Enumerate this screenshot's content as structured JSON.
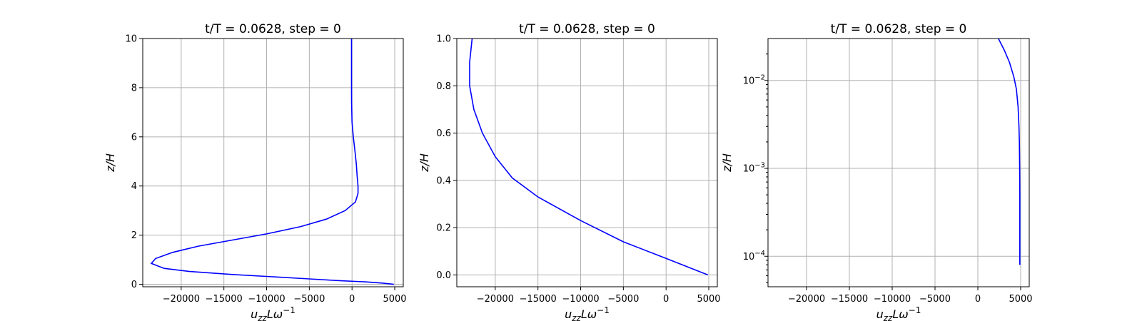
{
  "chart_data": [
    {
      "type": "line",
      "title": "t/T = 0.0628, step = 0",
      "xlabel": "u_zz L ω^-1",
      "ylabel": "z/H",
      "xlim": [
        -24500,
        6000
      ],
      "ylim": [
        -0.1,
        10
      ],
      "xticks": [
        -20000,
        -15000,
        -10000,
        -5000,
        0,
        5000
      ],
      "yticks": [
        0,
        2,
        4,
        6,
        8,
        10
      ],
      "ytick_labels": [
        "0",
        "2",
        "4",
        "6",
        "8",
        "10"
      ],
      "grid": true,
      "yscale": "linear",
      "series": [
        {
          "color": "#0000ff",
          "x": [
            4900,
            3500,
            1500,
            -1500,
            -5000,
            -9000,
            -14000,
            -19000,
            -22000,
            -23500,
            -23000,
            -21000,
            -18000,
            -14000,
            -10000,
            -6000,
            -3000,
            -800,
            400,
            700,
            700,
            600,
            500,
            350,
            150,
            0,
            -50,
            -60,
            -60,
            -60
          ],
          "y": [
            0,
            0.05,
            0.1,
            0.15,
            0.22,
            0.3,
            0.4,
            0.52,
            0.65,
            0.85,
            1.05,
            1.3,
            1.55,
            1.8,
            2.05,
            2.35,
            2.65,
            3.0,
            3.35,
            3.7,
            4.0,
            4.4,
            4.9,
            5.4,
            6.0,
            6.6,
            7.4,
            8.2,
            9.0,
            10.0
          ]
        }
      ]
    },
    {
      "type": "line",
      "title": "t/T = 0.0628, step = 0",
      "xlabel": "u_zz L ω^-1",
      "ylabel": "z/H",
      "xlim": [
        -24500,
        6000
      ],
      "ylim": [
        -0.05,
        1.0
      ],
      "xticks": [
        -20000,
        -15000,
        -10000,
        -5000,
        0,
        5000
      ],
      "yticks": [
        0,
        0.2,
        0.4,
        0.6,
        0.8,
        1.0
      ],
      "ytick_labels": [
        "0.0",
        "0.2",
        "0.4",
        "0.6",
        "0.8",
        "1.0"
      ],
      "grid": true,
      "yscale": "linear",
      "series": [
        {
          "color": "#0000ff",
          "x": [
            4900,
            0,
            -5000,
            -10000,
            -15000,
            -18000,
            -20000,
            -21500,
            -22500,
            -23000,
            -23000,
            -22700
          ],
          "y": [
            0,
            0.07,
            0.14,
            0.23,
            0.33,
            0.41,
            0.5,
            0.6,
            0.7,
            0.8,
            0.9,
            1.0
          ]
        }
      ]
    },
    {
      "type": "line",
      "title": "t/T = 0.0628, step = 0",
      "xlabel": "u_zz L ω^-1",
      "ylabel": "z/H",
      "xlim": [
        -24500,
        6000
      ],
      "ylim": [
        4.5e-05,
        0.03
      ],
      "xticks": [
        -20000,
        -15000,
        -10000,
        -5000,
        0,
        5000
      ],
      "yticks": [
        0.0001,
        0.001,
        0.01
      ],
      "ytick_labels": [
        "10",
        "10",
        "10"
      ],
      "ytick_exponents": [
        "−4",
        "−3",
        "−2"
      ],
      "grid": true,
      "yscale": "log",
      "series": [
        {
          "color": "#0000ff",
          "x": [
            4900,
            4900,
            4880,
            4850,
            4800,
            4700,
            4500,
            4200,
            3700,
            3100,
            2400
          ],
          "y": [
            8e-05,
            0.0005,
            0.001,
            0.002,
            0.003,
            0.005,
            0.008,
            0.011,
            0.016,
            0.022,
            0.03
          ]
        }
      ]
    }
  ],
  "axis_text": {
    "xlabel_base": "u",
    "xlabel_sub": "zz",
    "xlabel_mid": "Lω",
    "xlabel_sup": "−1",
    "ylabel": "z/H"
  }
}
